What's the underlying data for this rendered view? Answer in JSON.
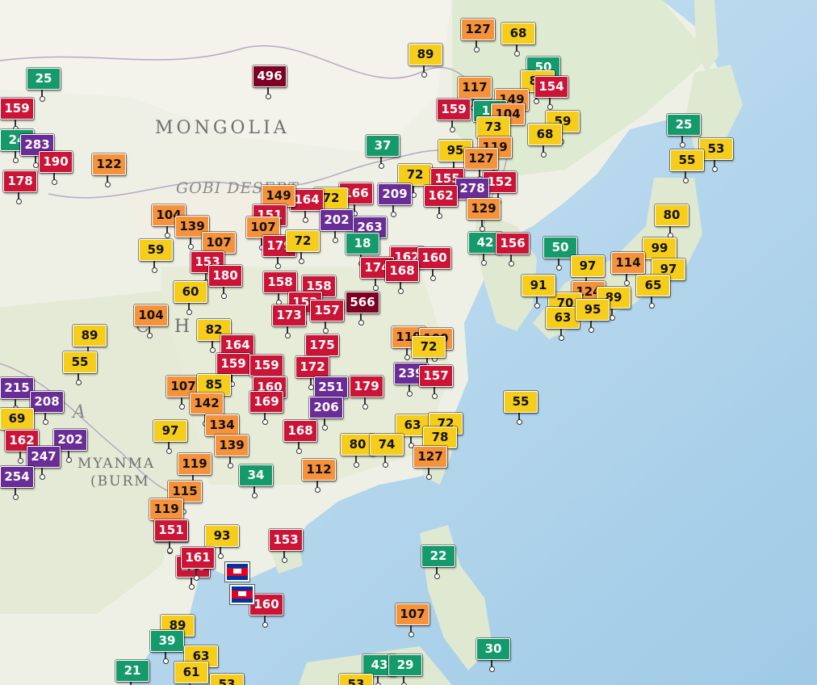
{
  "map": {
    "labels": {
      "mongolia": "MONGOLIA",
      "gobi": "GOBI DESERT",
      "china": "C H",
      "myanmar": "MYANMA",
      "burma": "(BURM",
      "a": "A"
    },
    "aqi_colors": {
      "good": "#159a6c",
      "moderate": "#f6cd1b",
      "usg": "#f6923a",
      "unhealthy": "#cc1437",
      "very_unhealthy": "#6a2c96",
      "hazardous": "#7e0023"
    },
    "markers": [
      {
        "v": "127"
      },
      {
        "v": "68"
      },
      {
        "v": "89"
      },
      {
        "v": "50"
      },
      {
        "v": "496"
      },
      {
        "v": "25"
      },
      {
        "v": "87"
      },
      {
        "v": "154"
      },
      {
        "v": "117"
      },
      {
        "v": "149"
      },
      {
        "v": "159"
      },
      {
        "v": "159"
      },
      {
        "v": "15"
      },
      {
        "v": "104"
      },
      {
        "v": "73"
      },
      {
        "v": "59"
      },
      {
        "v": "68"
      },
      {
        "v": "25"
      },
      {
        "v": "37"
      },
      {
        "v": "95"
      },
      {
        "v": "119"
      },
      {
        "v": "127"
      },
      {
        "v": "53"
      },
      {
        "v": "55"
      },
      {
        "v": "24"
      },
      {
        "v": "283"
      },
      {
        "v": "190"
      },
      {
        "v": "122"
      },
      {
        "v": "178"
      },
      {
        "v": "72"
      },
      {
        "v": "155"
      },
      {
        "v": "152"
      },
      {
        "v": "278"
      },
      {
        "v": "162"
      },
      {
        "v": "209"
      },
      {
        "v": "166"
      },
      {
        "v": "72"
      },
      {
        "v": "164"
      },
      {
        "v": "149"
      },
      {
        "v": "129"
      },
      {
        "v": "42"
      },
      {
        "v": "50"
      },
      {
        "v": "80"
      },
      {
        "v": "151"
      },
      {
        "v": "202"
      },
      {
        "v": "263"
      },
      {
        "v": "104"
      },
      {
        "v": "139"
      },
      {
        "v": "107"
      },
      {
        "v": "107"
      },
      {
        "v": "179"
      },
      {
        "v": "72"
      },
      {
        "v": "18"
      },
      {
        "v": "156"
      },
      {
        "v": "59"
      },
      {
        "v": "153"
      },
      {
        "v": "162"
      },
      {
        "v": "160"
      },
      {
        "v": "99"
      },
      {
        "v": "114"
      },
      {
        "v": "97"
      },
      {
        "v": "97"
      },
      {
        "v": "174"
      },
      {
        "v": "168"
      },
      {
        "v": "180"
      },
      {
        "v": "158"
      },
      {
        "v": "158"
      },
      {
        "v": "60"
      },
      {
        "v": "152"
      },
      {
        "v": "566"
      },
      {
        "v": "173"
      },
      {
        "v": "157"
      },
      {
        "v": "124"
      },
      {
        "v": "65"
      },
      {
        "v": "89"
      },
      {
        "v": "70"
      },
      {
        "v": "63"
      },
      {
        "v": "95"
      },
      {
        "v": "91"
      },
      {
        "v": "104"
      },
      {
        "v": "82"
      },
      {
        "v": "89"
      },
      {
        "v": "119"
      },
      {
        "v": "109"
      },
      {
        "v": "175"
      },
      {
        "v": "72"
      },
      {
        "v": "164"
      },
      {
        "v": "55"
      },
      {
        "v": "159"
      },
      {
        "v": "159"
      },
      {
        "v": "172"
      },
      {
        "v": "239"
      },
      {
        "v": "157"
      },
      {
        "v": "215"
      },
      {
        "v": "107"
      },
      {
        "v": "85"
      },
      {
        "v": "160"
      },
      {
        "v": "251"
      },
      {
        "v": "179"
      },
      {
        "v": "208"
      },
      {
        "v": "142"
      },
      {
        "v": "169"
      },
      {
        "v": "206"
      },
      {
        "v": "55"
      },
      {
        "v": "69"
      },
      {
        "v": "97"
      },
      {
        "v": "134"
      },
      {
        "v": "168"
      },
      {
        "v": "63"
      },
      {
        "v": "72"
      },
      {
        "v": "162"
      },
      {
        "v": "202"
      },
      {
        "v": "80"
      },
      {
        "v": "74"
      },
      {
        "v": "78"
      },
      {
        "v": "139"
      },
      {
        "v": "247"
      },
      {
        "v": "119"
      },
      {
        "v": "127"
      },
      {
        "v": "254"
      },
      {
        "v": "34"
      },
      {
        "v": "112"
      },
      {
        "v": "115"
      },
      {
        "v": "119"
      },
      {
        "v": "157"
      },
      {
        "v": "151"
      },
      {
        "v": "93"
      },
      {
        "v": "153"
      },
      {
        "v": "22"
      },
      {
        "v": "190"
      },
      {
        "v": "161"
      },
      {
        "v": "160"
      },
      {
        "v": "107"
      },
      {
        "v": "89"
      },
      {
        "v": "39"
      },
      {
        "v": "63"
      },
      {
        "v": "30"
      },
      {
        "v": "21"
      },
      {
        "v": "61"
      },
      {
        "v": "43"
      },
      {
        "v": "29"
      },
      {
        "v": "53"
      },
      {
        "v": "53"
      }
    ]
  }
}
